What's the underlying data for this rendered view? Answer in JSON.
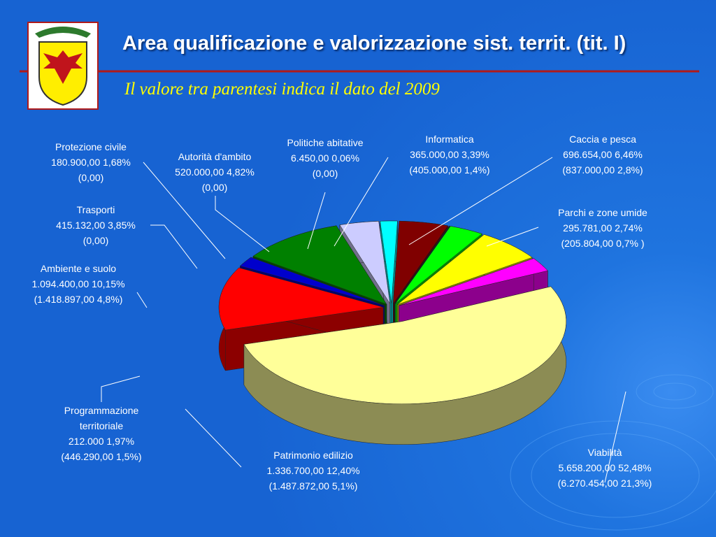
{
  "header": {
    "title": "Area qualificazione e valorizzazione sist. territ. (tit. I)",
    "subtitle": "Il valore tra parentesi indica il dato del 2009"
  },
  "chart_data": {
    "type": "pie",
    "categories": [
      "Viabilità",
      "Patrimonio edilizio",
      "Programmazione territoriale",
      "Ambiente e suolo",
      "Trasporti",
      "Protezione civile",
      "Autorità d'ambito",
      "Politiche abitative",
      "Informatica",
      "Caccia e pesca",
      "Parchi e zone umide"
    ],
    "values": [
      52.48,
      12.4,
      1.97,
      10.15,
      3.85,
      1.68,
      4.82,
      0.06,
      3.39,
      6.46,
      2.74
    ],
    "value_labels": [
      "5.658.200,00   52,48%",
      "1.336.700,00   12,40%",
      "212.000   1,97%",
      "1.094.400,00   10,15%",
      "415.132,00   3,85%",
      "180.900,00   1,68%",
      "520.000,00 4,82%",
      "6.450,00   0,06%",
      "365.000,00   3,39%",
      "696.654,00   6,46%",
      "295.781,00   2,74%"
    ],
    "prior_labels": [
      "(6.270.454,00   21,3%)",
      "(1.487.872,00   5,1%)",
      "(446.290,00   1,5%)",
      "(1.418.897,00  4,8%)",
      "(0,00)",
      "(0,00)",
      "(0,00)",
      "(0,00)",
      "(405.000,00  1,4%)",
      "(837.000,00   2,8%)",
      "(205.804,00   0,7% )"
    ],
    "colors": [
      "#ffff99",
      "#ff0000",
      "#0000cc",
      "#008000",
      "#ccccff",
      "#00ffff",
      "#800000",
      "#004040",
      "#00ff00",
      "#ffff00",
      "#ff00ff"
    ]
  }
}
